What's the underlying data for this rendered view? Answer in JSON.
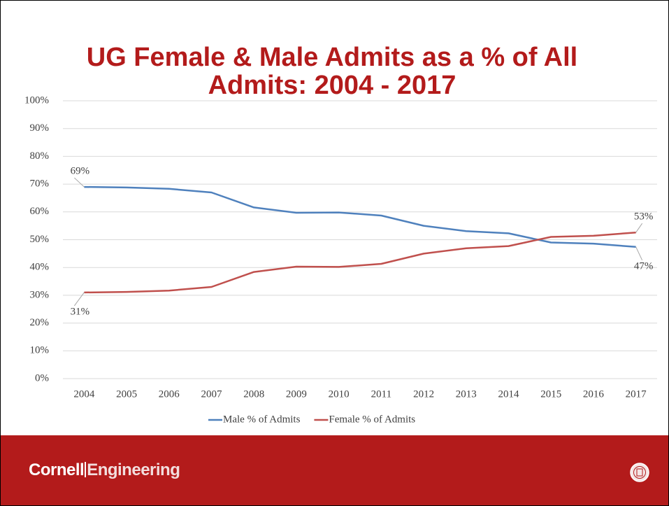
{
  "chart_data": {
    "type": "line",
    "title": "UG Female & Male Admits as a % of All Admits: 2004 - 2017",
    "categories": [
      "2004",
      "2005",
      "2006",
      "2007",
      "2008",
      "2009",
      "2010",
      "2011",
      "2012",
      "2013",
      "2014",
      "2015",
      "2016",
      "2017"
    ],
    "series": [
      {
        "name": "Male % of Admits",
        "color": "#4f81bd",
        "values": [
          69,
          68.8,
          68.3,
          67,
          61.6,
          59.7,
          59.8,
          58.7,
          55,
          53.1,
          52.3,
          49,
          48.6,
          47.4
        ],
        "value_labels": [
          "69%",
          null,
          null,
          null,
          null,
          null,
          null,
          null,
          null,
          null,
          null,
          null,
          null,
          "47%"
        ]
      },
      {
        "name": "Female % of Admits",
        "color": "#c0504d",
        "values": [
          31,
          31.2,
          31.7,
          33,
          38.4,
          40.3,
          40.2,
          41.3,
          45,
          46.9,
          47.7,
          51,
          51.4,
          52.6
        ],
        "value_labels": [
          "31%",
          null,
          null,
          null,
          null,
          null,
          null,
          null,
          null,
          null,
          null,
          null,
          null,
          "53%"
        ]
      }
    ],
    "ylim": [
      0,
      100
    ],
    "yticks": [
      {
        "value": 0,
        "label": "0%"
      },
      {
        "value": 10,
        "label": "10%"
      },
      {
        "value": 20,
        "label": "20%"
      },
      {
        "value": 30,
        "label": "30%"
      },
      {
        "value": 40,
        "label": "40%"
      },
      {
        "value": 50,
        "label": "50%"
      },
      {
        "value": 60,
        "label": "60%"
      },
      {
        "value": 70,
        "label": "70%"
      },
      {
        "value": 80,
        "label": "80%"
      },
      {
        "value": 90,
        "label": "90%"
      },
      {
        "value": 100,
        "label": "100%"
      }
    ],
    "grid": true,
    "legend": "bottom"
  },
  "footer": {
    "brand_1": "Cornell",
    "brand_2": "Engineering"
  }
}
